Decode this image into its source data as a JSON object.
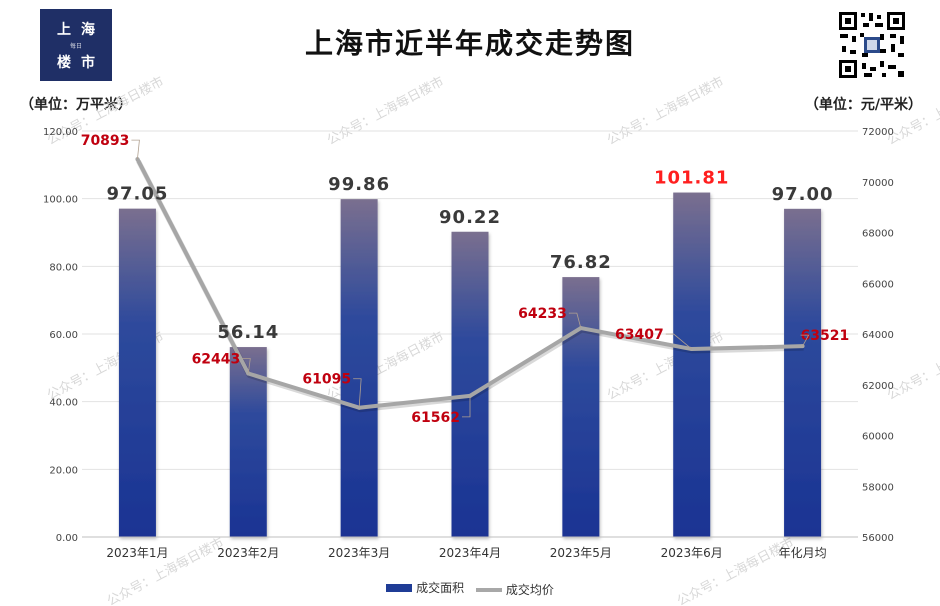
{
  "logo": {
    "line1": "上海",
    "line2": "每日",
    "line3": "楼市"
  },
  "title": "上海市近半年成交走势图",
  "unit_left": "（单位：万平米）",
  "unit_right": "（单位：元/平米）",
  "watermark": "公众号：上海每日楼市",
  "qr_icon": "qr-code-icon",
  "colors": {
    "bar_top": "#7a6f8f",
    "bar_bottom": "#1a3393",
    "line": "#a6a6a6",
    "price_label": "#c0000f",
    "highlight_value": "#ff1f1f",
    "value_label": "#3a3a3a"
  },
  "chart_data": {
    "type": "bar",
    "title": "上海市近半年成交走势图",
    "categories": [
      "2023年1月",
      "2023年2月",
      "2023年3月",
      "2023年4月",
      "2023年5月",
      "2023年6月",
      "年化月均"
    ],
    "series": [
      {
        "name": "成交面积",
        "type": "bar",
        "axis": "left",
        "values": [
          97.05,
          56.14,
          99.86,
          90.22,
          76.82,
          101.81,
          97.0
        ],
        "labels": [
          "97.05",
          "56.14",
          "99.86",
          "90.22",
          "76.82",
          "101.81",
          "97.00"
        ],
        "highlight_index": 5
      },
      {
        "name": "成交均价",
        "type": "line",
        "axis": "right",
        "values": [
          70893,
          62443,
          61095,
          61562,
          64233,
          63407,
          63521
        ],
        "labels": [
          "70893",
          "62443",
          "61095",
          "61562",
          "64233",
          "63407",
          "63521"
        ]
      }
    ],
    "y_left": {
      "label": "（单位：万平米）",
      "lim": [
        0,
        120
      ],
      "ticks": [
        "0.00",
        "20.00",
        "40.00",
        "60.00",
        "80.00",
        "100.00",
        "120.00"
      ]
    },
    "y_right": {
      "label": "（单位：元/平米）",
      "lim": [
        56000,
        72000
      ],
      "ticks": [
        "56000",
        "58000",
        "60000",
        "62000",
        "64000",
        "66000",
        "68000",
        "70000",
        "72000"
      ]
    },
    "grid": true,
    "legend": "bottom"
  }
}
